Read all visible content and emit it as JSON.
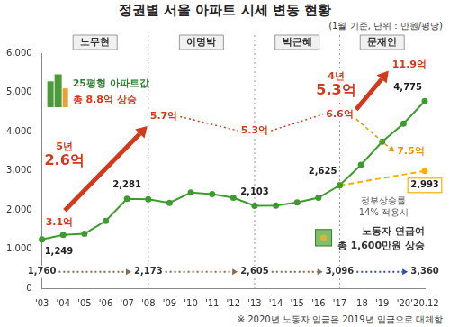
{
  "chart_data": {
    "type": "line",
    "title": "정권별 서울 아파트 시세 변동 현황",
    "subtitle": "(1월 기준, 단위 : 만원/평당)",
    "categories": [
      "'03",
      "'04",
      "'05",
      "'06",
      "'07",
      "'08",
      "'09",
      "'10",
      "'11",
      "'12",
      "'13",
      "'14",
      "'15",
      "'16",
      "'17",
      "'18",
      "'19",
      "'20",
      "'20.12"
    ],
    "series": [
      {
        "color": "#3e9b2f",
        "line_style": "solid",
        "marker": "circle",
        "values": [
          1249,
          1360,
          1390,
          1720,
          2281,
          2270,
          2180,
          2440,
          2400,
          2310,
          2103,
          2110,
          2190,
          2310,
          2625,
          3150,
          3740,
          4200,
          4775
        ],
        "value_labels": [
          "1,249",
          null,
          null,
          null,
          "2,281",
          null,
          null,
          null,
          null,
          null,
          "2,103",
          null,
          null,
          null,
          "2,625",
          null,
          null,
          null,
          "4,775"
        ]
      },
      {
        "color": "#f2b200",
        "line_style": "dashed",
        "marker": "circle",
        "values": [
          null,
          null,
          null,
          null,
          null,
          null,
          null,
          null,
          null,
          null,
          null,
          null,
          null,
          null,
          2625,
          null,
          null,
          null,
          2993
        ],
        "value_labels": [
          null,
          null,
          null,
          null,
          null,
          null,
          null,
          null,
          null,
          null,
          null,
          null,
          null,
          null,
          null,
          null,
          null,
          null,
          "2,993"
        ]
      }
    ],
    "ylim": [
      0,
      6000
    ],
    "yticks": [
      0,
      {
        "value": 1000,
        "label": "1,000"
      },
      {
        "value": 2000,
        "label": "2,000"
      },
      {
        "value": 3000,
        "label": "3,000"
      },
      {
        "value": 4000,
        "label": "4,000"
      },
      {
        "value": 5000,
        "label": "5,000"
      },
      {
        "value": 6000,
        "label": "6,000"
      }
    ],
    "grid": false,
    "data_labels": true,
    "annotations": {
      "eras": {
        "labels": [
          "노무현",
          "이명박",
          "박근혜",
          "문재인"
        ],
        "starts": [
          "'03",
          "'08",
          "'13",
          "'17"
        ]
      },
      "apartment_25pyeong": {
        "categories": [
          "'03",
          "'08",
          "'13",
          "'17",
          "'20.12"
        ],
        "labels": [
          "3.1억",
          "5.7억",
          "5.3억",
          "6.6억",
          "11.9억"
        ],
        "alt_label": "7.5억",
        "alt_category": "'20"
      },
      "gains": [
        {
          "period": "5년",
          "amount": "2.6억"
        },
        {
          "period": "4년",
          "amount": "5.3억"
        }
      ],
      "apartment_note": [
        "25평형 아파트값",
        "총 8.8억 상승"
      ],
      "wage": {
        "categories": [
          "'03",
          "'08",
          "'13",
          "'17",
          "'20.12"
        ],
        "labels": [
          "1,760",
          "2,173",
          "2,605",
          "3,096",
          "3,360"
        ],
        "colors": [
          "#8b6b4a",
          "#8b6b4a",
          "#8b6b4a",
          "#8b6b4a",
          "#2f4fa8"
        ]
      },
      "wage_note": [
        "노동자 연급여",
        "총 1,600만원 상승"
      ],
      "alt_note": [
        "정부상승률",
        "14% 적용시"
      ],
      "footnote": "※ 2020년 노동자 임금은 2019년 임금으로 대체함"
    }
  }
}
